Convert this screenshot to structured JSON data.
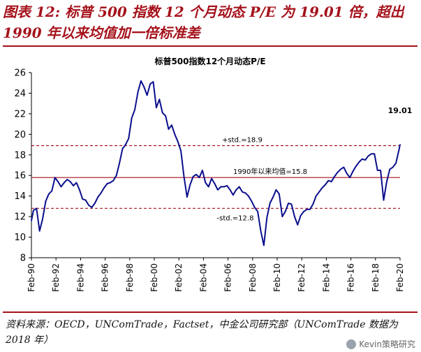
{
  "header": {
    "title": "图表 12:  标普 500 指数 12 个月动态 P/E 为 19.01 倍，超出 1990 年以来均值加一倍标准差"
  },
  "source": {
    "text": "资料来源：OECD，UNComTrade，Factset，中金公司研究部（UNComTrade 数据为 2018 年）"
  },
  "watermark": {
    "text": "Kevin策略研究"
  },
  "colors": {
    "title_red": "#a5121b",
    "series": "#0a0f8c",
    "ref_line": "#a5121b"
  },
  "chart_data": {
    "type": "line",
    "title": "标普500指数12个月动态P/E",
    "xlabel": "",
    "ylabel": "",
    "ylim": [
      8,
      26
    ],
    "yticks": [
      8,
      10,
      12,
      14,
      16,
      18,
      20,
      22,
      24,
      26
    ],
    "xlim": [
      1990.083,
      2020.083
    ],
    "xticks": [
      {
        "label": "Feb-90",
        "t": 1990.083
      },
      {
        "label": "Feb-92",
        "t": 1992.083
      },
      {
        "label": "Feb-94",
        "t": 1994.083
      },
      {
        "label": "Feb-96",
        "t": 1996.083
      },
      {
        "label": "Feb-98",
        "t": 1998.083
      },
      {
        "label": "Feb-00",
        "t": 2000.083
      },
      {
        "label": "Feb-02",
        "t": 2002.083
      },
      {
        "label": "Feb-04",
        "t": 2004.083
      },
      {
        "label": "Feb-06",
        "t": 2006.083
      },
      {
        "label": "Feb-08",
        "t": 2008.083
      },
      {
        "label": "Feb-10",
        "t": 2010.083
      },
      {
        "label": "Feb-12",
        "t": 2012.083
      },
      {
        "label": "Feb-14",
        "t": 2014.083
      },
      {
        "label": "Feb-16",
        "t": 2016.083
      },
      {
        "label": "Feb-18",
        "t": 2018.083
      },
      {
        "label": "Feb-20",
        "t": 2020.083
      }
    ],
    "reference_lines": [
      {
        "name": "plus-std",
        "value": 18.9,
        "label": "+std.=18.9",
        "style": "dashed"
      },
      {
        "name": "mean",
        "value": 15.8,
        "label": "1990年以来均值=15.8",
        "style": "solid"
      },
      {
        "name": "minus-std",
        "value": 12.8,
        "label": "-std.=12.8",
        "style": "dashed"
      }
    ],
    "last_value_label": "19.01",
    "series": [
      {
        "name": "标普500指数12个月动态P/E",
        "x": [
          1990.083,
          1990.25,
          1990.5,
          1990.75,
          1991.0,
          1991.25,
          1991.5,
          1991.75,
          1992.0,
          1992.25,
          1992.5,
          1992.75,
          1993.0,
          1993.25,
          1993.5,
          1993.75,
          1994.0,
          1994.25,
          1994.5,
          1994.75,
          1995.0,
          1995.25,
          1995.5,
          1995.75,
          1996.0,
          1996.25,
          1996.5,
          1996.75,
          1997.0,
          1997.25,
          1997.5,
          1997.75,
          1998.0,
          1998.25,
          1998.5,
          1998.75,
          1999.0,
          1999.25,
          1999.5,
          1999.75,
          2000.0,
          2000.25,
          2000.5,
          2000.75,
          2001.0,
          2001.25,
          2001.5,
          2001.75,
          2002.0,
          2002.25,
          2002.5,
          2002.75,
          2003.0,
          2003.25,
          2003.5,
          2003.75,
          2004.0,
          2004.25,
          2004.5,
          2004.75,
          2005.0,
          2005.25,
          2005.5,
          2005.75,
          2006.0,
          2006.25,
          2006.5,
          2006.75,
          2007.0,
          2007.25,
          2007.5,
          2007.75,
          2008.0,
          2008.25,
          2008.5,
          2008.75,
          2009.0,
          2009.25,
          2009.5,
          2009.75,
          2010.0,
          2010.25,
          2010.5,
          2010.75,
          2011.0,
          2011.25,
          2011.5,
          2011.75,
          2012.0,
          2012.25,
          2012.5,
          2012.75,
          2013.0,
          2013.25,
          2013.5,
          2013.75,
          2014.0,
          2014.25,
          2014.5,
          2014.75,
          2015.0,
          2015.25,
          2015.5,
          2015.75,
          2016.0,
          2016.25,
          2016.5,
          2016.75,
          2017.0,
          2017.25,
          2017.5,
          2017.75,
          2018.0,
          2018.25,
          2018.5,
          2018.75,
          2019.0,
          2019.25,
          2019.5,
          2019.75,
          2020.0,
          2020.083
        ],
        "values": [
          11.6,
          12.6,
          12.8,
          10.6,
          11.8,
          13.5,
          14.2,
          14.5,
          15.8,
          15.4,
          14.9,
          15.3,
          15.6,
          15.4,
          15.0,
          15.3,
          14.6,
          13.7,
          13.6,
          13.1,
          12.9,
          13.3,
          13.9,
          14.3,
          14.8,
          15.2,
          15.3,
          15.5,
          16.0,
          17.2,
          18.6,
          19.0,
          19.6,
          21.6,
          22.4,
          24.1,
          25.2,
          24.6,
          23.8,
          24.9,
          25.1,
          22.6,
          23.4,
          22.1,
          21.8,
          20.5,
          20.9,
          20.0,
          19.3,
          18.4,
          15.9,
          13.9,
          15.1,
          15.9,
          16.1,
          15.8,
          16.5,
          15.3,
          14.9,
          15.7,
          15.2,
          14.6,
          14.9,
          14.9,
          15.0,
          14.6,
          14.1,
          14.6,
          14.9,
          14.4,
          14.3,
          14.0,
          13.5,
          12.9,
          12.5,
          10.6,
          9.2,
          11.9,
          13.3,
          13.9,
          14.6,
          14.2,
          12.0,
          12.5,
          13.3,
          13.2,
          12.0,
          11.2,
          12.1,
          12.5,
          12.7,
          12.7,
          13.2,
          14.0,
          14.4,
          14.8,
          15.1,
          15.5,
          15.4,
          15.9,
          16.3,
          16.6,
          16.8,
          16.2,
          15.8,
          16.4,
          16.9,
          17.3,
          17.6,
          17.5,
          17.9,
          18.1,
          18.1,
          16.5,
          16.5,
          13.6,
          15.4,
          16.6,
          16.8,
          17.2,
          18.5,
          19.01
        ]
      }
    ]
  }
}
